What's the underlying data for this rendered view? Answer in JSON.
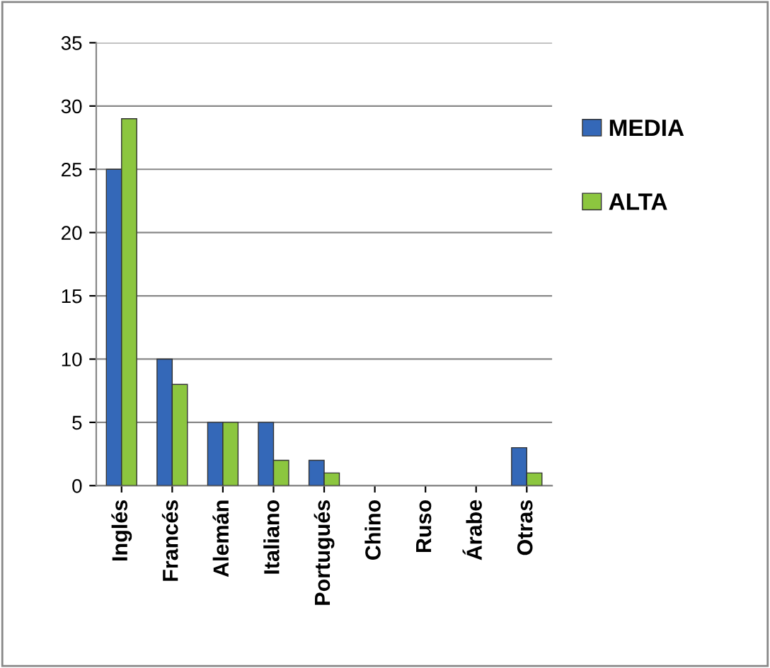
{
  "chart_data": {
    "type": "bar",
    "categories": [
      "Inglés",
      "Francés",
      "Alemán",
      "Italiano",
      "Portugués",
      "Chino",
      "Ruso",
      "Árabe",
      "Otras"
    ],
    "series": [
      {
        "name": "MEDIA",
        "color": "#3468b8",
        "values": [
          25,
          10,
          5,
          5,
          2,
          0,
          0,
          0,
          3
        ]
      },
      {
        "name": "ALTA",
        "color": "#8cc63f",
        "values": [
          29,
          8,
          5,
          2,
          1,
          0,
          0,
          0,
          1
        ]
      }
    ],
    "ylim": [
      0,
      35
    ],
    "yticks": [
      0,
      5,
      10,
      15,
      20,
      25,
      30,
      35
    ],
    "grid": "y",
    "legend": "right"
  }
}
